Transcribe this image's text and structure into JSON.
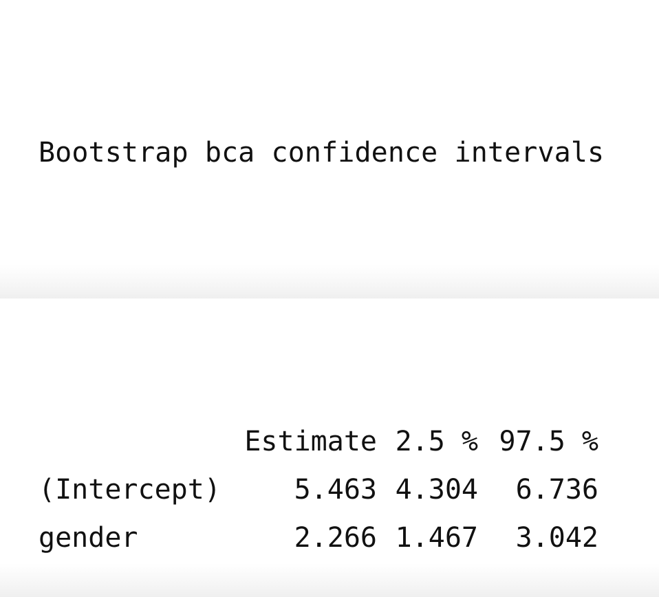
{
  "output": {
    "title": "Bootstrap bca confidence intervals",
    "table": {
      "header": [
        "",
        "Estimate",
        "2.5 %",
        "97.5 %"
      ],
      "rows": [
        {
          "label": "(Intercept)",
          "estimate": "5.463",
          "lower": "4.304",
          "upper": "6.736"
        },
        {
          "label": "gender",
          "estimate": "2.266",
          "lower": "1.467",
          "upper": "3.042"
        }
      ]
    }
  }
}
